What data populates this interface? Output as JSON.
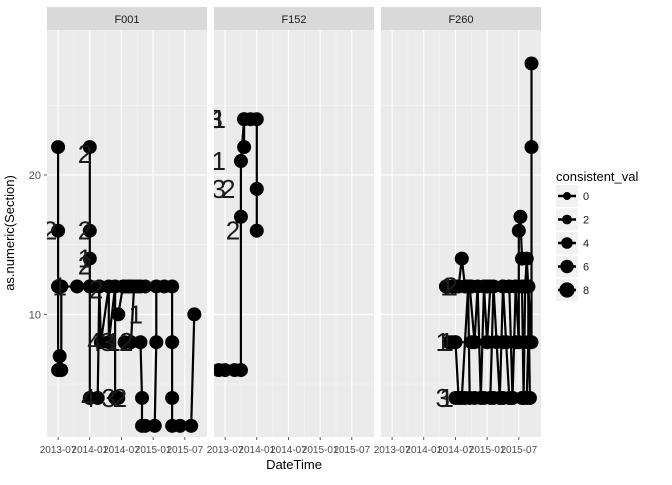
{
  "chart_data": {
    "type": "line",
    "xlabel": "DateTime",
    "ylabel": "as.numeric(Section)",
    "y_ticks": [
      10,
      20
    ],
    "ylim": [
      1.2,
      30.4
    ],
    "x_ticks": [
      "2013-07",
      "2014-01",
      "2014-07",
      "2015-01",
      "2015-07"
    ],
    "x_tick_values": [
      0,
      1,
      2,
      3,
      4
    ],
    "xlim": [
      -0.35,
      4.7
    ],
    "panels": [
      {
        "name": "F001",
        "lines": [
          [
            [
              0.0,
              22
            ],
            [
              0.0,
              16
            ],
            [
              0.0,
              12
            ],
            [
              0.0,
              6
            ],
            [
              0.05,
              7
            ],
            [
              0.1,
              6
            ],
            [
              0.1,
              12
            ]
          ],
          [
            [
              0.0,
              12
            ],
            [
              0.6,
              12
            ],
            [
              1.0,
              12
            ]
          ],
          [
            [
              1.0,
              22
            ],
            [
              1.0,
              16
            ],
            [
              1.0,
              14
            ],
            [
              1.0,
              12
            ],
            [
              1.0,
              4
            ],
            [
              1.25,
              4
            ],
            [
              1.3,
              12
            ]
          ],
          [
            [
              1.3,
              12
            ],
            [
              1.35,
              8
            ],
            [
              1.6,
              12
            ],
            [
              1.6,
              8
            ],
            [
              1.8,
              12
            ],
            [
              1.8,
              4
            ],
            [
              1.9,
              4
            ]
          ],
          [
            [
              1.9,
              10
            ],
            [
              2.05,
              12
            ],
            [
              2.1,
              12
            ],
            [
              2.2,
              12
            ],
            [
              2.25,
              12
            ],
            [
              2.3,
              12
            ]
          ],
          [
            [
              2.1,
              8
            ],
            [
              2.3,
              8
            ],
            [
              2.4,
              12
            ],
            [
              2.5,
              12
            ],
            [
              2.6,
              12
            ],
            [
              2.75,
              12
            ]
          ],
          [
            [
              2.6,
              8
            ],
            [
              2.65,
              4
            ],
            [
              2.65,
              2
            ],
            [
              2.75,
              2
            ],
            [
              3.05,
              2
            ],
            [
              3.1,
              8
            ],
            [
              3.1,
              12
            ]
          ],
          [
            [
              3.35,
              12
            ],
            [
              3.6,
              12
            ],
            [
              3.6,
              8
            ],
            [
              3.6,
              4
            ],
            [
              3.6,
              2
            ],
            [
              3.85,
              2
            ],
            [
              4.2,
              2
            ],
            [
              4.3,
              10
            ]
          ]
        ],
        "labels": [
          {
            "text": "2",
            "x": -0.25,
            "y": 16
          },
          {
            "text": "1",
            "x": 0.05,
            "y": 12
          },
          {
            "text": "2",
            "x": 0.85,
            "y": 21.5
          },
          {
            "text": "2",
            "x": 0.85,
            "y": 16
          },
          {
            "text": "1",
            "x": 0.85,
            "y": 14
          },
          {
            "text": "2",
            "x": 0.85,
            "y": 13.5
          },
          {
            "text": "2",
            "x": 1.2,
            "y": 11.8
          },
          {
            "text": "4",
            "x": 1.15,
            "y": 8
          },
          {
            "text": "3",
            "x": 1.55,
            "y": 8
          },
          {
            "text": "1",
            "x": 1.75,
            "y": 8
          },
          {
            "text": "4",
            "x": 0.95,
            "y": 4
          },
          {
            "text": "3",
            "x": 1.6,
            "y": 4
          },
          {
            "text": "2",
            "x": 1.95,
            "y": 4
          },
          {
            "text": "1",
            "x": 2.45,
            "y": 10
          },
          {
            "text": "2",
            "x": 2.15,
            "y": 8
          }
        ]
      },
      {
        "name": "F152",
        "lines": [
          [
            [
              -0.2,
              6
            ],
            [
              0.0,
              6
            ],
            [
              0.3,
              6
            ],
            [
              0.5,
              6
            ],
            [
              0.5,
              17
            ],
            [
              0.5,
              21
            ],
            [
              0.6,
              24
            ],
            [
              0.6,
              22
            ]
          ],
          [
            [
              0.6,
              24
            ],
            [
              0.8,
              24
            ],
            [
              1.0,
              24
            ],
            [
              1.0,
              19
            ],
            [
              1.0,
              16
            ]
          ]
        ],
        "labels": [
          {
            "text": "3",
            "x": -0.3,
            "y": 24
          },
          {
            "text": "1",
            "x": -0.2,
            "y": 24
          },
          {
            "text": "1",
            "x": -0.2,
            "y": 21
          },
          {
            "text": "3",
            "x": -0.2,
            "y": 19
          },
          {
            "text": "2",
            "x": 0.1,
            "y": 19
          },
          {
            "text": "2",
            "x": 0.25,
            "y": 16
          }
        ]
      },
      {
        "name": "F260",
        "lines": [
          [
            [
              1.7,
              12
            ],
            [
              1.9,
              12
            ],
            [
              2.1,
              12
            ],
            [
              2.2,
              14
            ],
            [
              2.3,
              12
            ],
            [
              2.4,
              12
            ]
          ],
          [
            [
              1.8,
              8
            ],
            [
              1.9,
              8
            ],
            [
              2.0,
              8
            ],
            [
              2.1,
              4
            ],
            [
              2.2,
              4
            ],
            [
              2.4,
              12
            ],
            [
              2.45,
              4
            ]
          ],
          [
            [
              2.45,
              12
            ],
            [
              2.6,
              8
            ],
            [
              2.7,
              12
            ],
            [
              2.8,
              4
            ],
            [
              2.9,
              12
            ],
            [
              3.0,
              8
            ],
            [
              3.1,
              12
            ]
          ],
          [
            [
              3.1,
              4
            ],
            [
              3.2,
              12
            ],
            [
              3.3,
              8
            ],
            [
              3.4,
              4
            ],
            [
              3.5,
              12
            ],
            [
              3.6,
              8
            ],
            [
              3.7,
              4
            ]
          ],
          [
            [
              3.7,
              12
            ],
            [
              3.8,
              4
            ],
            [
              3.9,
              12
            ],
            [
              4.0,
              8
            ],
            [
              4.0,
              16
            ],
            [
              4.05,
              17
            ],
            [
              4.1,
              14
            ]
          ],
          [
            [
              4.1,
              12
            ],
            [
              4.15,
              4
            ],
            [
              4.2,
              12
            ],
            [
              4.25,
              14
            ],
            [
              4.3,
              12
            ],
            [
              4.35,
              4
            ]
          ],
          [
            [
              4.25,
              4
            ],
            [
              4.3,
              8
            ],
            [
              4.3,
              12
            ],
            [
              4.4,
              8
            ],
            [
              4.4,
              22
            ],
            [
              4.4,
              28
            ]
          ],
          [
            [
              2.0,
              4
            ],
            [
              2.3,
              4
            ],
            [
              2.6,
              4
            ],
            [
              2.9,
              4
            ],
            [
              3.2,
              4
            ],
            [
              3.5,
              4
            ],
            [
              3.8,
              4
            ],
            [
              4.1,
              4
            ]
          ],
          [
            [
              2.0,
              8
            ],
            [
              2.5,
              8
            ],
            [
              3.0,
              8
            ],
            [
              3.5,
              8
            ],
            [
              3.9,
              8
            ]
          ],
          [
            [
              2.0,
              12
            ],
            [
              2.5,
              12
            ],
            [
              3.0,
              12
            ],
            [
              3.5,
              12
            ],
            [
              3.9,
              12
            ]
          ]
        ],
        "labels": [
          {
            "text": "1",
            "x": 1.75,
            "y": 12
          },
          {
            "text": "2",
            "x": 1.85,
            "y": 12
          },
          {
            "text": "1",
            "x": 1.6,
            "y": 8
          },
          {
            "text": "1",
            "x": 1.72,
            "y": 8
          },
          {
            "text": "3",
            "x": 1.6,
            "y": 4
          },
          {
            "text": "1",
            "x": 1.72,
            "y": 4
          }
        ]
      }
    ],
    "legend": {
      "title": "consistent_val",
      "entries": [
        "0",
        "2",
        "4",
        "6",
        "8"
      ],
      "marker_sizes": [
        0,
        2,
        4,
        6,
        8
      ],
      "placement": "right"
    },
    "grid": true,
    "colors": {
      "panel_bg": "#ebebeb",
      "strip_bg": "#d9d9d9",
      "grid_major": "#ffffff",
      "grid_minor": "#f5f5f5",
      "series": "#000000",
      "axis_text": "#4d4d4d",
      "label_text": "#1a1a1a"
    }
  }
}
